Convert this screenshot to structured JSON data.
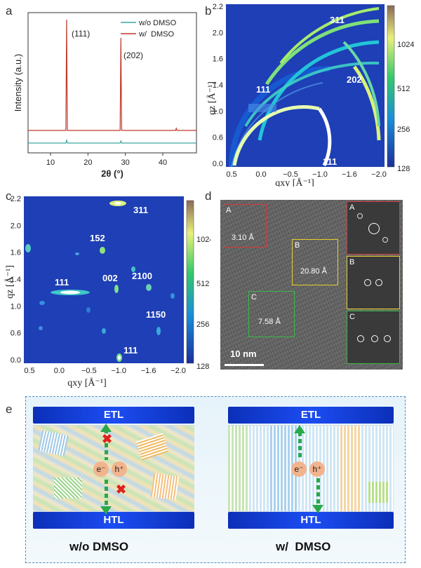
{
  "panels": {
    "a": "a",
    "b": "b",
    "c": "c",
    "d": "d",
    "e": "e"
  },
  "panel_a": {
    "ylabel": "Intensity (a.u.)",
    "xlabel": "2θ (°)",
    "legend": [
      "w/o DMSO",
      "w/  DMSO"
    ],
    "peak_labels": [
      "(111)",
      "(202)"
    ]
  },
  "giwaxs": {
    "qxy_label": "qxy [Å⁻¹]",
    "qz_label": "qz [Å⁻¹]",
    "b_labels": [
      "311",
      "202",
      "111",
      "111"
    ],
    "c_labels": [
      "311",
      "152",
      "002",
      "2100",
      "111",
      "1150",
      "111"
    ],
    "colorbar_ticks": [
      "1024",
      "512",
      "256",
      "128"
    ]
  },
  "panel_d": {
    "box_labels": [
      "A",
      "B",
      "C"
    ],
    "spacings": [
      "3.10 Å",
      "20.80 Å",
      "7.58 Å"
    ],
    "fft_labels": [
      "A",
      "B",
      "C"
    ],
    "scale": "10 nm"
  },
  "panel_e": {
    "etl": "ETL",
    "htl": "HTL",
    "electron": "e⁻",
    "hole": "h⁺",
    "left_caption": "w/o DMSO",
    "right_caption": "w/  DMSO"
  },
  "chart_data": [
    {
      "type": "line",
      "xlabel": "2θ (°)",
      "ylabel": "Intensity (a.u.)",
      "xlim": [
        4,
        49
      ],
      "xticks": [
        10,
        20,
        30,
        40
      ],
      "series": [
        {
          "name": "w/o DMSO",
          "color": "#3aa6a0",
          "x": [
            4,
            14.1,
            14.3,
            14.5,
            28.6,
            28.8,
            29.0,
            49
          ],
          "y": [
            0.07,
            0.07,
            0.09,
            0.07,
            0.07,
            0.085,
            0.07,
            0.07
          ]
        },
        {
          "name": "w/  DMSO",
          "color": "#c0392b",
          "x": [
            4,
            14.1,
            14.3,
            14.5,
            28.6,
            28.8,
            29.0,
            43.4,
            43.6,
            43.8,
            49
          ],
          "y": [
            0.16,
            0.16,
            0.95,
            0.16,
            0.16,
            0.82,
            0.16,
            0.16,
            0.175,
            0.16,
            0.16
          ]
        }
      ]
    }
  ]
}
